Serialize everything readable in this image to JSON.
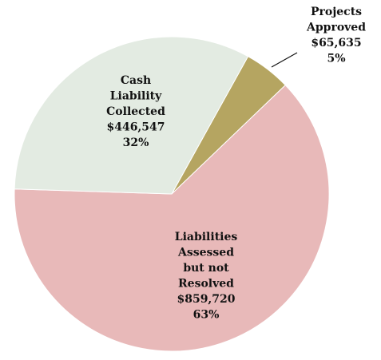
{
  "chart_data": {
    "type": "pie",
    "categories": [
      [
        "Projects",
        "Approved"
      ],
      [
        "Liabilities",
        "Assessed",
        "but not",
        "Resolved"
      ],
      [
        "Cash",
        "Liability",
        "Collected"
      ]
    ],
    "values": [
      65635,
      859720,
      446547
    ],
    "value_labels": [
      "$65,635",
      "$859,720",
      "$446,547"
    ],
    "percent_labels": [
      "5%",
      "63%",
      "32%"
    ],
    "colors": [
      "#b5a561",
      "#e8b9b9",
      "#e3ebe2"
    ]
  }
}
